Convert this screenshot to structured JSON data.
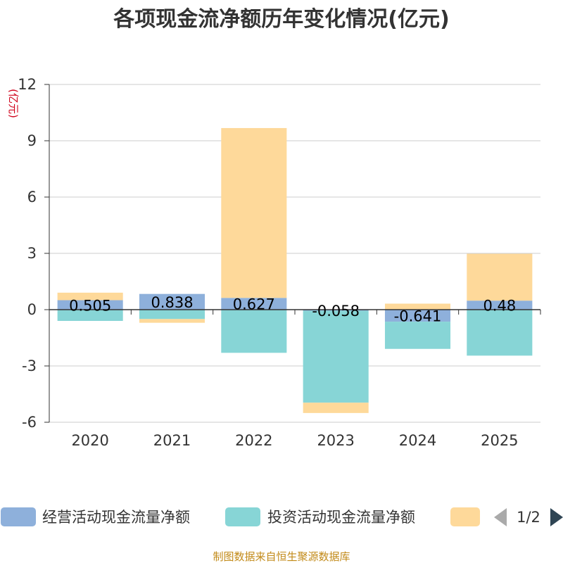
{
  "chart_data": {
    "type": "bar",
    "stacked": true,
    "title": "各项现金流净额历年变化情况(亿元)",
    "ylabel": "(亿元)",
    "xlabel": "",
    "ylim": [
      -6,
      12
    ],
    "yticks": [
      -6,
      -3,
      0,
      3,
      6,
      9,
      12
    ],
    "ytick_labels": [
      "-6",
      "-3",
      "0",
      "3",
      "6",
      "9",
      "12"
    ],
    "grid": true,
    "categories": [
      "2020",
      "2021",
      "2022",
      "2023",
      "2024",
      "2025"
    ],
    "series": [
      {
        "name": "经营活动现金流量净额",
        "values": [
          0.505,
          0.838,
          0.627,
          -0.058,
          -0.641,
          0.48
        ],
        "color": "#8eb0db",
        "show_labels": true
      },
      {
        "name": "投资活动现金流量净额",
        "values": [
          -0.6,
          -0.5,
          -2.3,
          -4.9,
          -1.45,
          -2.45
        ],
        "color": "#87d5d6",
        "show_labels": false
      },
      {
        "name": "",
        "values": [
          0.4,
          -0.2,
          9.05,
          -0.55,
          0.32,
          2.5
        ],
        "color": "#fed99a",
        "show_labels": false
      }
    ],
    "data_labels": [
      "0.505",
      "0.838",
      "0.627",
      "-0.058",
      "-0.641",
      "0.48"
    ],
    "legend_position": "bottom"
  },
  "legend": {
    "items": [
      "经营活动现金流量净额",
      "投资活动现金流量净额",
      ""
    ],
    "page_indicator": "1/2"
  },
  "source": "制图数据来自恒生聚源数据库"
}
